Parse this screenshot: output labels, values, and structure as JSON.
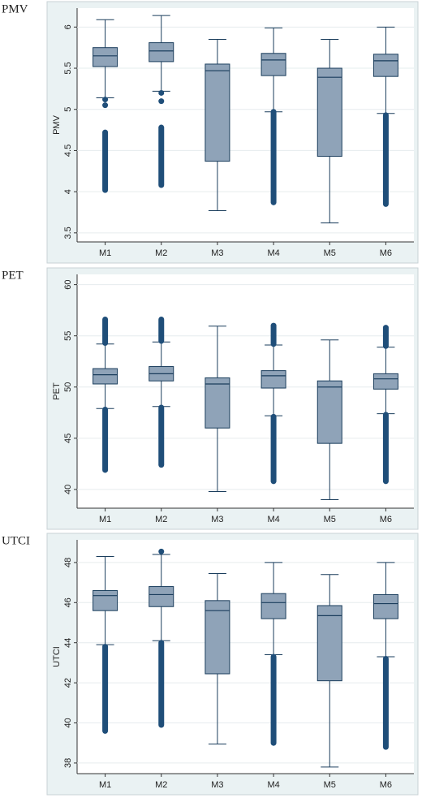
{
  "chart_data": [
    {
      "type": "box",
      "title": "PMV",
      "ylabel": "PMV",
      "categories": [
        "M1",
        "M2",
        "M3",
        "M4",
        "M5",
        "M6"
      ],
      "ylim": [
        3.39,
        6.23
      ],
      "yticks": [
        3.5,
        4,
        4.5,
        5,
        5.5,
        6
      ],
      "grid": true,
      "box_color": "#8fa3b8",
      "line_color": "#1a3d5c",
      "outlier_color": "#1f4e79",
      "boxes": [
        {
          "whisker_low": 5.14,
          "q1": 5.52,
          "median": 5.65,
          "q3": 5.75,
          "whisker_high": 6.09,
          "outliers": [
            5.12,
            5.05
          ],
          "outlier_bands": [
            [
              4.02,
              4.72
            ]
          ]
        },
        {
          "whisker_low": 5.22,
          "q1": 5.58,
          "median": 5.71,
          "q3": 5.81,
          "whisker_high": 6.14,
          "outliers": [
            5.2,
            5.1
          ],
          "outlier_bands": [
            [
              4.08,
              4.78
            ]
          ]
        },
        {
          "whisker_low": 3.77,
          "q1": 4.37,
          "median": 5.47,
          "q3": 5.55,
          "whisker_high": 5.85,
          "outliers": [],
          "outlier_bands": []
        },
        {
          "whisker_low": 4.97,
          "q1": 5.41,
          "median": 5.6,
          "q3": 5.68,
          "whisker_high": 5.99,
          "outliers": [],
          "outlier_bands": [
            [
              3.87,
              4.97
            ]
          ]
        },
        {
          "whisker_low": 3.62,
          "q1": 4.43,
          "median": 5.39,
          "q3": 5.5,
          "whisker_high": 5.85,
          "outliers": [],
          "outlier_bands": []
        },
        {
          "whisker_low": 4.95,
          "q1": 5.4,
          "median": 5.59,
          "q3": 5.67,
          "whisker_high": 6.0,
          "outliers": [],
          "outlier_bands": [
            [
              3.85,
              4.93
            ]
          ]
        }
      ]
    },
    {
      "type": "box",
      "title": "PET",
      "ylabel": "PET",
      "categories": [
        "M1",
        "M2",
        "M3",
        "M4",
        "M5",
        "M6"
      ],
      "ylim": [
        38.17,
        61.0
      ],
      "yticks": [
        40,
        45,
        50,
        55,
        60
      ],
      "grid": true,
      "box_color": "#8fa3b8",
      "line_color": "#1a3d5c",
      "outlier_color": "#1f4e79",
      "boxes": [
        {
          "whisker_low": 47.9,
          "q1": 50.3,
          "median": 51.2,
          "q3": 51.8,
          "whisker_high": 54.2,
          "outliers": [],
          "outlier_bands": [
            [
              54.3,
              56.6
            ],
            [
              41.9,
              47.8
            ]
          ]
        },
        {
          "whisker_low": 48.1,
          "q1": 50.6,
          "median": 51.3,
          "q3": 52.0,
          "whisker_high": 54.4,
          "outliers": [],
          "outlier_bands": [
            [
              54.5,
              56.6
            ],
            [
              42.4,
              48.0
            ]
          ]
        },
        {
          "whisker_low": 39.8,
          "q1": 46.0,
          "median": 50.3,
          "q3": 50.9,
          "whisker_high": 55.95,
          "outliers": [],
          "outlier_bands": []
        },
        {
          "whisker_low": 47.2,
          "q1": 49.9,
          "median": 51.1,
          "q3": 51.6,
          "whisker_high": 54.1,
          "outliers": [],
          "outlier_bands": [
            [
              54.2,
              56.0
            ],
            [
              40.8,
              47.1
            ]
          ]
        },
        {
          "whisker_low": 39.0,
          "q1": 44.5,
          "median": 50.0,
          "q3": 50.6,
          "whisker_high": 54.6,
          "outliers": [],
          "outlier_bands": []
        },
        {
          "whisker_low": 47.4,
          "q1": 49.8,
          "median": 50.8,
          "q3": 51.3,
          "whisker_high": 53.9,
          "outliers": [],
          "outlier_bands": [
            [
              54.0,
              55.8
            ],
            [
              40.8,
              47.3
            ]
          ]
        }
      ]
    },
    {
      "type": "box",
      "title": "UTCI",
      "ylabel": "UTCI",
      "categories": [
        "M1",
        "M2",
        "M3",
        "M4",
        "M5",
        "M6"
      ],
      "ylim": [
        37.47,
        49.13
      ],
      "yticks": [
        38,
        40,
        42,
        44,
        46,
        48
      ],
      "grid": true,
      "box_color": "#8fa3b8",
      "line_color": "#1a3d5c",
      "outlier_color": "#1f4e79",
      "boxes": [
        {
          "whisker_low": 43.9,
          "q1": 45.6,
          "median": 46.35,
          "q3": 46.6,
          "whisker_high": 48.3,
          "outliers": [],
          "outlier_bands": [
            [
              39.6,
              43.8
            ]
          ]
        },
        {
          "whisker_low": 44.1,
          "q1": 45.8,
          "median": 46.4,
          "q3": 46.8,
          "whisker_high": 48.4,
          "outliers": [
            48.55
          ],
          "outlier_bands": [
            [
              39.9,
              44.0
            ]
          ]
        },
        {
          "whisker_low": 38.95,
          "q1": 42.45,
          "median": 45.6,
          "q3": 46.1,
          "whisker_high": 47.45,
          "outliers": [],
          "outlier_bands": []
        },
        {
          "whisker_low": 43.4,
          "q1": 45.2,
          "median": 46.0,
          "q3": 46.45,
          "whisker_high": 48.0,
          "outliers": [],
          "outlier_bands": [
            [
              39.0,
              43.3
            ]
          ]
        },
        {
          "whisker_low": 37.8,
          "q1": 42.1,
          "median": 45.35,
          "q3": 45.85,
          "whisker_high": 47.4,
          "outliers": [],
          "outlier_bands": []
        },
        {
          "whisker_low": 43.3,
          "q1": 45.2,
          "median": 45.95,
          "q3": 46.4,
          "whisker_high": 48.0,
          "outliers": [],
          "outlier_bands": [
            [
              38.8,
              43.2
            ]
          ]
        }
      ]
    }
  ]
}
